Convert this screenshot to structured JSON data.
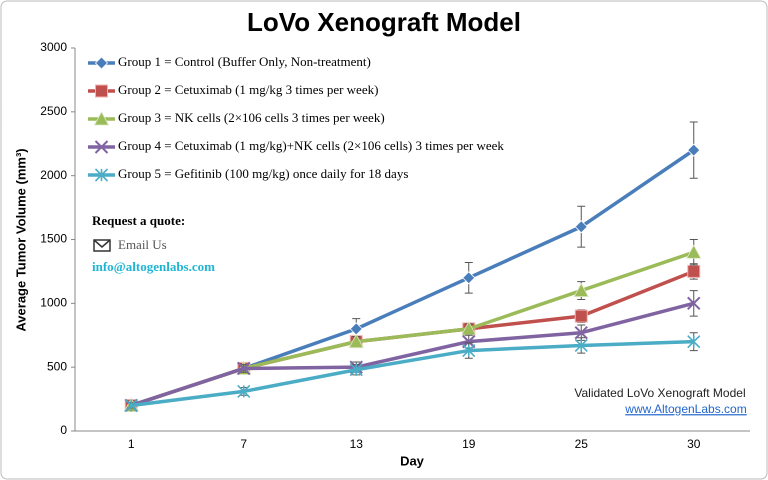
{
  "chart_data": {
    "type": "line",
    "title": "LoVo Xenograft Model",
    "x_label": "Day",
    "y_label": "Average Tumor Volume (mm³)",
    "categories": [
      "1",
      "7",
      "13",
      "19",
      "25",
      "30"
    ],
    "ylim": [
      0,
      3000
    ],
    "yticks": [
      0,
      500,
      1000,
      1500,
      2000,
      2500,
      3000
    ],
    "grid": false,
    "legend": "upper-left",
    "series": [
      {
        "name": "Group 1 = Control (Buffer Only, Non-treatment)",
        "color": "#4a7ebb",
        "marker": "diamond",
        "values": [
          200,
          490,
          800,
          1200,
          1600,
          2200
        ],
        "errors": [
          20,
          30,
          80,
          120,
          160,
          220
        ]
      },
      {
        "name": "Group 2 = Cetuximab (1 mg/kg 3 times per week)",
        "color": "#c0504d",
        "marker": "square",
        "values": [
          200,
          490,
          700,
          800,
          900,
          1250
        ],
        "errors": [
          20,
          30,
          40,
          40,
          50,
          60
        ]
      },
      {
        "name": "Group 3 = NK cells (2×106 cells 3 times per week)",
        "color": "#9bbb59",
        "marker": "triangle",
        "values": [
          200,
          490,
          700,
          800,
          1100,
          1400
        ],
        "errors": [
          20,
          30,
          40,
          40,
          70,
          100
        ]
      },
      {
        "name": "Group 4 =  Cetuximab (1 mg/kg)+NK cells (2×106 cells) 3 times per week",
        "color": "#8064a2",
        "marker": "x",
        "values": [
          200,
          490,
          500,
          700,
          770,
          1000
        ],
        "errors": [
          20,
          30,
          40,
          50,
          60,
          100
        ]
      },
      {
        "name": "Group 5 =  Gefitinib (100 mg/kg) once daily for 18 days",
        "color": "#4bacc6",
        "marker": "star",
        "values": [
          200,
          310,
          480,
          630,
          670,
          700
        ],
        "errors": [
          20,
          30,
          40,
          60,
          60,
          70
        ]
      }
    ],
    "annotations": [
      "Request a quote:",
      "Email Us",
      "info@altogenlabs.com",
      "Validated LoVo Xenograft Model",
      "www.AltogenLabs.com"
    ]
  }
}
